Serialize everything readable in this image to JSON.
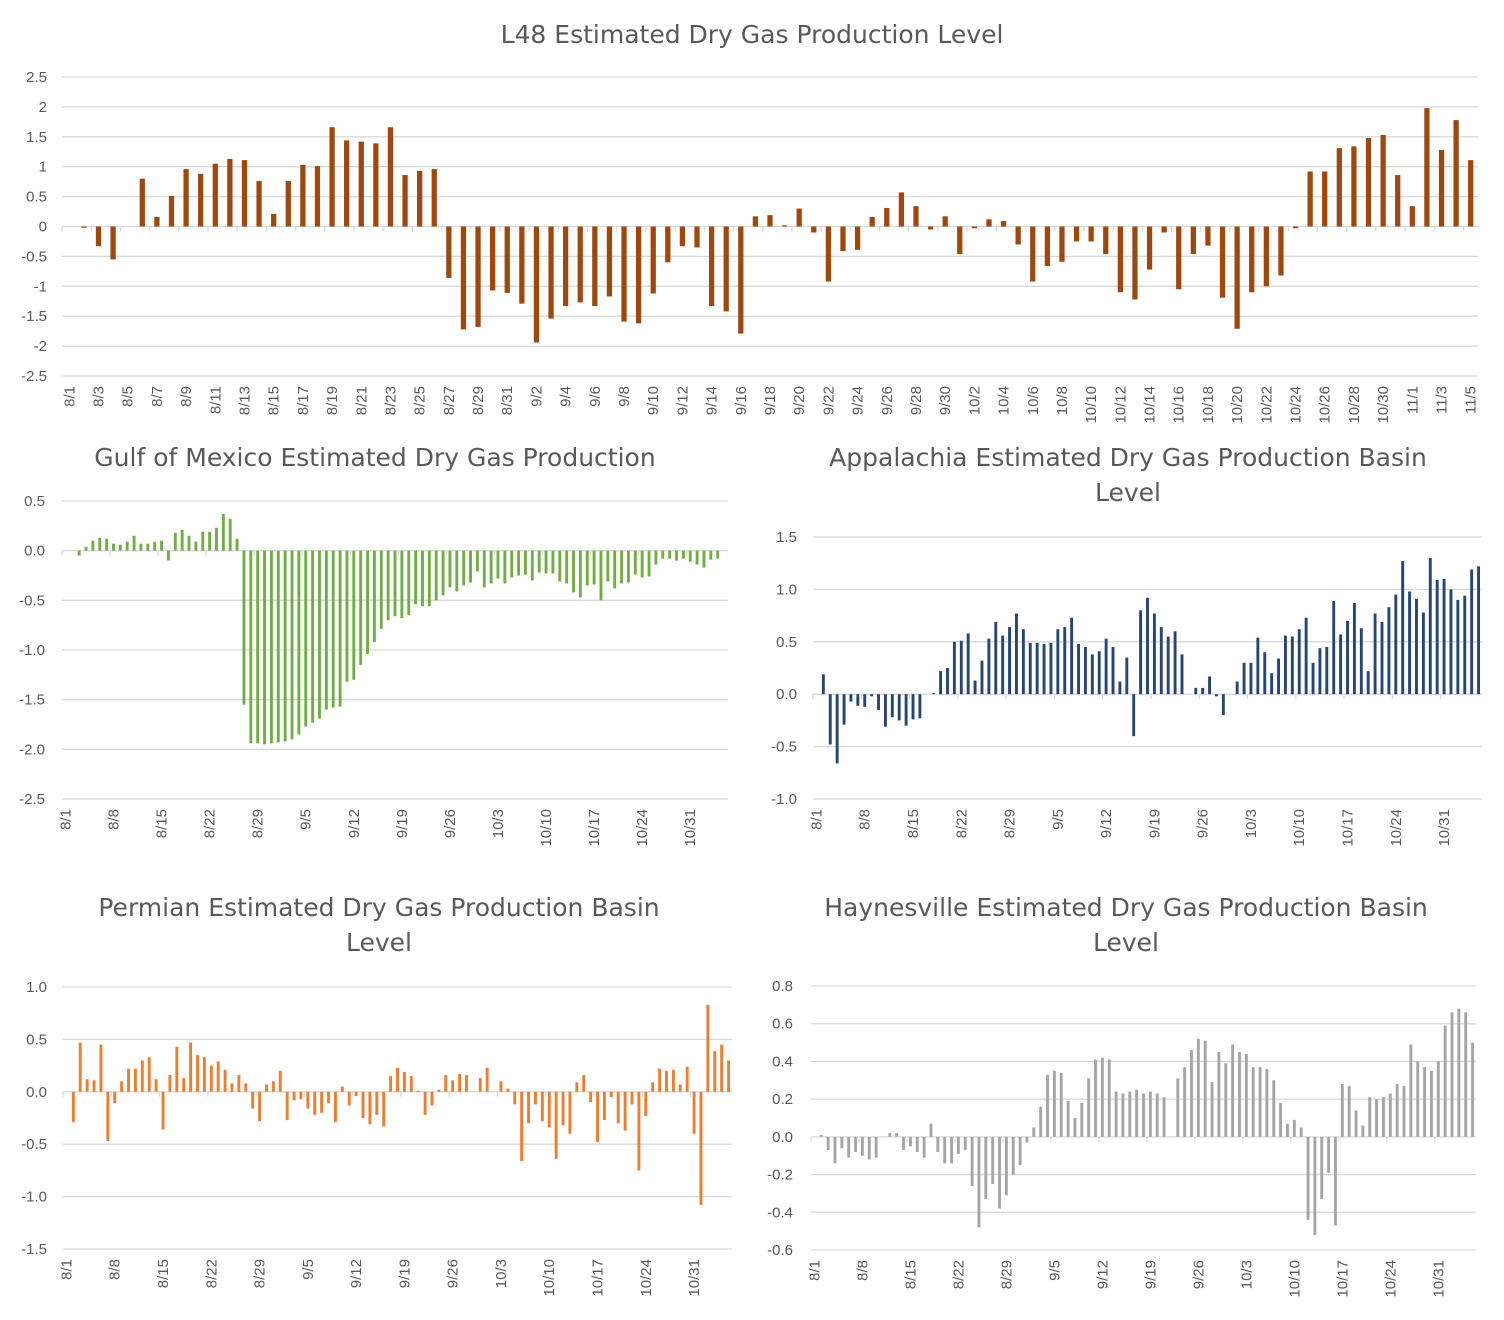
{
  "chart_data": [
    {
      "type": "bar",
      "title": "L48 Estimated Dry Gas Production Level",
      "color": "#9e480e",
      "ylim": [
        -2.5,
        2.5
      ],
      "yticks": [
        "2.5",
        "2",
        "1.5",
        "1",
        "0.5",
        "0",
        "-0.5",
        "-1",
        "-1.5",
        "-2",
        "-2.5"
      ],
      "grid": true,
      "legend": "none",
      "categories": [
        "8/1",
        "8/2",
        "8/3",
        "8/4",
        "8/5",
        "8/6",
        "8/7",
        "8/8",
        "8/9",
        "8/10",
        "8/11",
        "8/12",
        "8/13",
        "8/14",
        "8/15",
        "8/16",
        "8/17",
        "8/18",
        "8/19",
        "8/20",
        "8/21",
        "8/22",
        "8/23",
        "8/24",
        "8/25",
        "8/26",
        "8/27",
        "8/28",
        "8/29",
        "8/30",
        "8/31",
        "9/1",
        "9/2",
        "9/3",
        "9/4",
        "9/5",
        "9/6",
        "9/7",
        "9/8",
        "9/9",
        "9/10",
        "9/11",
        "9/12",
        "9/13",
        "9/14",
        "9/15",
        "9/16",
        "9/17",
        "9/18",
        "9/19",
        "9/20",
        "9/21",
        "9/22",
        "9/23",
        "9/24",
        "9/25",
        "9/26",
        "9/27",
        "9/28",
        "9/29",
        "9/30",
        "10/1",
        "10/2",
        "10/3",
        "10/4",
        "10/5",
        "10/6",
        "10/7",
        "10/8",
        "10/9",
        "10/10",
        "10/11",
        "10/12",
        "10/13",
        "10/14",
        "10/15",
        "10/16",
        "10/17",
        "10/18",
        "10/19",
        "10/20",
        "10/21",
        "10/22",
        "10/23",
        "10/24",
        "10/25",
        "10/26",
        "10/27",
        "10/28",
        "10/29",
        "10/30",
        "10/31",
        "11/1",
        "11/2",
        "11/3",
        "11/4",
        "11/5"
      ],
      "xtick_labels": [
        "8/1",
        "8/3",
        "8/5",
        "8/7",
        "8/9",
        "8/11",
        "8/13",
        "8/15",
        "8/17",
        "8/19",
        "8/21",
        "8/23",
        "8/25",
        "8/27",
        "8/29",
        "8/31",
        "9/2",
        "9/4",
        "9/6",
        "9/8",
        "9/10",
        "9/12",
        "9/14",
        "9/16",
        "9/18",
        "9/20",
        "9/22",
        "9/24",
        "9/26",
        "9/28",
        "9/30",
        "10/2",
        "10/4",
        "10/6",
        "10/8",
        "10/10",
        "10/12",
        "10/14",
        "10/16",
        "10/18",
        "10/20",
        "10/22",
        "10/24",
        "10/26",
        "10/28",
        "10/30",
        "11/1",
        "11/3",
        "11/5"
      ],
      "values": [
        0,
        -0.02,
        -0.33,
        -0.55,
        0,
        0.8,
        0.16,
        0.51,
        0.96,
        0.88,
        1.05,
        1.13,
        1.11,
        0.76,
        0.21,
        0.76,
        1.03,
        1.01,
        1.66,
        1.44,
        1.42,
        1.39,
        1.66,
        0.86,
        0.93,
        0.96,
        -0.86,
        -1.72,
        -1.68,
        -1.07,
        -1.11,
        -1.29,
        -1.94,
        -1.54,
        -1.33,
        -1.27,
        -1.33,
        -1.17,
        -1.59,
        -1.62,
        -1.12,
        -0.6,
        -0.33,
        -0.35,
        -1.33,
        -1.42,
        -1.79,
        0.17,
        0.19,
        0.02,
        0.3,
        -0.1,
        -0.92,
        -0.41,
        -0.39,
        0.16,
        0.31,
        0.57,
        0.34,
        -0.05,
        0.17,
        -0.46,
        -0.03,
        0.12,
        0.09,
        -0.3,
        -0.92,
        -0.66,
        -0.59,
        -0.25,
        -0.25,
        -0.46,
        -1.1,
        -1.22,
        -0.72,
        -0.1,
        -1.05,
        -0.46,
        -0.32,
        -1.19,
        -1.71,
        -1.1,
        -1.0,
        -0.82,
        -0.03,
        0.92,
        0.92,
        1.31,
        1.34,
        1.48,
        1.53,
        0.86,
        0.34,
        1.98,
        1.28,
        1.78,
        1.11
      ]
    },
    {
      "type": "bar",
      "title": "Gulf of Mexico Estimated Dry Gas Production",
      "color": "#70ad47",
      "ylim": [
        -2.5,
        0.5
      ],
      "yticks": [
        "0.5",
        "0.0",
        "-0.5",
        "-1.0",
        "-1.5",
        "-2.0",
        "-2.5"
      ],
      "grid": true,
      "legend": "none",
      "categories": [
        "8/1",
        "8/2",
        "8/3",
        "8/4",
        "8/5",
        "8/6",
        "8/7",
        "8/8",
        "8/9",
        "8/10",
        "8/11",
        "8/12",
        "8/13",
        "8/14",
        "8/15",
        "8/16",
        "8/17",
        "8/18",
        "8/19",
        "8/20",
        "8/21",
        "8/22",
        "8/23",
        "8/24",
        "8/25",
        "8/26",
        "8/27",
        "8/28",
        "8/29",
        "8/30",
        "8/31",
        "9/1",
        "9/2",
        "9/3",
        "9/4",
        "9/5",
        "9/6",
        "9/7",
        "9/8",
        "9/9",
        "9/10",
        "9/11",
        "9/12",
        "9/13",
        "9/14",
        "9/15",
        "9/16",
        "9/17",
        "9/18",
        "9/19",
        "9/20",
        "9/21",
        "9/22",
        "9/23",
        "9/24",
        "9/25",
        "9/26",
        "9/27",
        "9/28",
        "9/29",
        "9/30",
        "10/1",
        "10/2",
        "10/3",
        "10/4",
        "10/5",
        "10/6",
        "10/7",
        "10/8",
        "10/9",
        "10/10",
        "10/11",
        "10/12",
        "10/13",
        "10/14",
        "10/15",
        "10/16",
        "10/17",
        "10/18",
        "10/19",
        "10/20",
        "10/21",
        "10/22",
        "10/23",
        "10/24",
        "10/25",
        "10/26",
        "10/27",
        "10/28",
        "10/29",
        "10/30",
        "10/31",
        "11/1",
        "11/2",
        "11/3",
        "11/4",
        "11/5"
      ],
      "xtick_labels": [
        "8/1",
        "8/8",
        "8/15",
        "8/22",
        "8/29",
        "9/5",
        "9/12",
        "9/19",
        "9/26",
        "10/3",
        "10/10",
        "10/17",
        "10/24",
        "10/31"
      ],
      "values": [
        0,
        0,
        -0.05,
        0.04,
        0.1,
        0.13,
        0.12,
        0.07,
        0.06,
        0.09,
        0.15,
        0.07,
        0.07,
        0.09,
        0.1,
        -0.1,
        0.18,
        0.21,
        0.15,
        0.09,
        0.19,
        0.19,
        0.23,
        0.37,
        0.32,
        0.12,
        -1.55,
        -1.94,
        -1.94,
        -1.95,
        -1.94,
        -1.93,
        -1.92,
        -1.9,
        -1.85,
        -1.77,
        -1.73,
        -1.69,
        -1.6,
        -1.58,
        -1.57,
        -1.32,
        -1.3,
        -1.15,
        -1.04,
        -0.92,
        -0.79,
        -0.7,
        -0.66,
        -0.68,
        -0.65,
        -0.54,
        -0.56,
        -0.56,
        -0.5,
        -0.45,
        -0.37,
        -0.41,
        -0.35,
        -0.32,
        -0.21,
        -0.37,
        -0.33,
        -0.28,
        -0.33,
        -0.27,
        -0.25,
        -0.24,
        -0.3,
        -0.22,
        -0.23,
        -0.23,
        -0.31,
        -0.33,
        -0.42,
        -0.47,
        -0.35,
        -0.34,
        -0.5,
        -0.31,
        -0.38,
        -0.33,
        -0.32,
        -0.24,
        -0.27,
        -0.26,
        -0.14,
        -0.08,
        -0.08,
        -0.1,
        -0.08,
        -0.11,
        -0.14,
        -0.17,
        -0.09,
        -0.08,
        0
      ]
    },
    {
      "type": "bar",
      "title": "Appalachia Estimated Dry Gas Production Basin Level",
      "color": "#264478",
      "ylim": [
        -1.0,
        1.5
      ],
      "yticks": [
        "1.5",
        "1.0",
        "0.5",
        "0.0",
        "-0.5",
        "-1.0"
      ],
      "grid": true,
      "legend": "none",
      "categories": [
        "8/1",
        "8/2",
        "8/3",
        "8/4",
        "8/5",
        "8/6",
        "8/7",
        "8/8",
        "8/9",
        "8/10",
        "8/11",
        "8/12",
        "8/13",
        "8/14",
        "8/15",
        "8/16",
        "8/17",
        "8/18",
        "8/19",
        "8/20",
        "8/21",
        "8/22",
        "8/23",
        "8/24",
        "8/25",
        "8/26",
        "8/27",
        "8/28",
        "8/29",
        "8/30",
        "8/31",
        "9/1",
        "9/2",
        "9/3",
        "9/4",
        "9/5",
        "9/6",
        "9/7",
        "9/8",
        "9/9",
        "9/10",
        "9/11",
        "9/12",
        "9/13",
        "9/14",
        "9/15",
        "9/16",
        "9/17",
        "9/18",
        "9/19",
        "9/20",
        "9/21",
        "9/22",
        "9/23",
        "9/24",
        "9/25",
        "9/26",
        "9/27",
        "9/28",
        "9/29",
        "9/30",
        "10/1",
        "10/2",
        "10/3",
        "10/4",
        "10/5",
        "10/6",
        "10/7",
        "10/8",
        "10/9",
        "10/10",
        "10/11",
        "10/12",
        "10/13",
        "10/14",
        "10/15",
        "10/16",
        "10/17",
        "10/18",
        "10/19",
        "10/20",
        "10/21",
        "10/22",
        "10/23",
        "10/24",
        "10/25",
        "10/26",
        "10/27",
        "10/28",
        "10/29",
        "10/30",
        "10/31",
        "11/1",
        "11/2",
        "11/3",
        "11/4",
        "11/5"
      ],
      "xtick_labels": [
        "8/1",
        "8/8",
        "8/15",
        "8/22",
        "8/29",
        "9/5",
        "9/12",
        "9/19",
        "9/26",
        "10/3",
        "10/10",
        "10/17",
        "10/24",
        "10/31"
      ],
      "values": [
        0,
        0.19,
        -0.48,
        -0.66,
        -0.29,
        -0.07,
        -0.11,
        -0.12,
        -0.02,
        -0.15,
        -0.31,
        -0.22,
        -0.25,
        -0.3,
        -0.24,
        -0.23,
        0,
        0.01,
        0.22,
        0.25,
        0.5,
        0.51,
        0.58,
        0.13,
        0.32,
        0.53,
        0.69,
        0.56,
        0.64,
        0.77,
        0.62,
        0.49,
        0.49,
        0.48,
        0.49,
        0.62,
        0.64,
        0.73,
        0.48,
        0.45,
        0.38,
        0.41,
        0.53,
        0.45,
        0.12,
        0.35,
        -0.4,
        0.8,
        0.92,
        0.77,
        0.64,
        0.55,
        0.6,
        0.38,
        0,
        0.06,
        0.06,
        0.17,
        -0.02,
        -0.2,
        0,
        0.12,
        0.3,
        0.3,
        0.54,
        0.4,
        0.2,
        0.34,
        0.56,
        0.55,
        0.62,
        0.73,
        0.3,
        0.44,
        0.45,
        0.89,
        0.57,
        0.7,
        0.87,
        0.63,
        0.22,
        0.77,
        0.69,
        0.83,
        0.95,
        1.27,
        0.98,
        0.91,
        0.78,
        1.3,
        1.09,
        1.1,
        1.0,
        0.9,
        0.94,
        1.19,
        1.22
      ]
    },
    {
      "type": "bar",
      "title": "Permian Estimated Dry Gas Production Basin Level",
      "color": "#ed7d31",
      "ylim": [
        -1.5,
        1.0
      ],
      "yticks": [
        "1.0",
        "0.5",
        "0.0",
        "-0.5",
        "-1.0",
        "-1.5"
      ],
      "grid": true,
      "legend": "none",
      "categories": [
        "8/1",
        "8/2",
        "8/3",
        "8/4",
        "8/5",
        "8/6",
        "8/7",
        "8/8",
        "8/9",
        "8/10",
        "8/11",
        "8/12",
        "8/13",
        "8/14",
        "8/15",
        "8/16",
        "8/17",
        "8/18",
        "8/19",
        "8/20",
        "8/21",
        "8/22",
        "8/23",
        "8/24",
        "8/25",
        "8/26",
        "8/27",
        "8/28",
        "8/29",
        "8/30",
        "8/31",
        "9/1",
        "9/2",
        "9/3",
        "9/4",
        "9/5",
        "9/6",
        "9/7",
        "9/8",
        "9/9",
        "9/10",
        "9/11",
        "9/12",
        "9/13",
        "9/14",
        "9/15",
        "9/16",
        "9/17",
        "9/18",
        "9/19",
        "9/20",
        "9/21",
        "9/22",
        "9/23",
        "9/24",
        "9/25",
        "9/26",
        "9/27",
        "9/28",
        "9/29",
        "9/30",
        "10/1",
        "10/2",
        "10/3",
        "10/4",
        "10/5",
        "10/6",
        "10/7",
        "10/8",
        "10/9",
        "10/10",
        "10/11",
        "10/12",
        "10/13",
        "10/14",
        "10/15",
        "10/16",
        "10/17",
        "10/18",
        "10/19",
        "10/20",
        "10/21",
        "10/22",
        "10/23",
        "10/24",
        "10/25",
        "10/26",
        "10/27",
        "10/28",
        "10/29",
        "10/30",
        "10/31",
        "11/1",
        "11/2",
        "11/3",
        "11/4",
        "11/5"
      ],
      "xtick_labels": [
        "8/1",
        "8/8",
        "8/15",
        "8/22",
        "8/29",
        "9/5",
        "9/12",
        "9/19",
        "9/26",
        "10/3",
        "10/10",
        "10/17",
        "10/24",
        "10/31"
      ],
      "values": [
        0,
        -0.29,
        0.47,
        0.12,
        0.11,
        0.45,
        -0.47,
        -0.11,
        0.1,
        0.22,
        0.22,
        0.3,
        0.33,
        0.12,
        -0.36,
        0.16,
        0.43,
        0.13,
        0.47,
        0.35,
        0.33,
        0.25,
        0.29,
        0.21,
        0.08,
        0.16,
        0.08,
        -0.16,
        -0.28,
        0.07,
        0.1,
        0.2,
        -0.27,
        -0.08,
        -0.07,
        -0.16,
        -0.22,
        -0.2,
        -0.11,
        -0.29,
        0.05,
        -0.13,
        -0.04,
        -0.25,
        -0.31,
        -0.22,
        -0.33,
        0.15,
        0.23,
        0.19,
        0.15,
        0.01,
        -0.22,
        -0.13,
        0.02,
        0.16,
        0.11,
        0.17,
        0.16,
        0,
        0.13,
        0.23,
        0,
        0.1,
        0.03,
        -0.12,
        -0.66,
        -0.3,
        -0.12,
        -0.28,
        -0.34,
        -0.64,
        -0.32,
        -0.4,
        0.09,
        0.16,
        -0.1,
        -0.48,
        -0.27,
        -0.05,
        -0.3,
        -0.37,
        -0.12,
        -0.75,
        -0.23,
        0.09,
        0.22,
        0.2,
        0.21,
        0.07,
        0.24,
        -0.4,
        -1.08,
        0.83,
        0.39,
        0.45,
        0.3
      ]
    },
    {
      "type": "bar",
      "title": "Haynesville Estimated Dry Gas Production Basin Level",
      "color": "#a5a5a5",
      "ylim": [
        -0.6,
        0.8
      ],
      "yticks": [
        "0.8",
        "0.6",
        "0.4",
        "0.2",
        "0.0",
        "-0.2",
        "-0.4",
        "-0.6"
      ],
      "grid": true,
      "legend": "none",
      "categories": [
        "8/1",
        "8/2",
        "8/3",
        "8/4",
        "8/5",
        "8/6",
        "8/7",
        "8/8",
        "8/9",
        "8/10",
        "8/11",
        "8/12",
        "8/13",
        "8/14",
        "8/15",
        "8/16",
        "8/17",
        "8/18",
        "8/19",
        "8/20",
        "8/21",
        "8/22",
        "8/23",
        "8/24",
        "8/25",
        "8/26",
        "8/27",
        "8/28",
        "8/29",
        "8/30",
        "8/31",
        "9/1",
        "9/2",
        "9/3",
        "9/4",
        "9/5",
        "9/6",
        "9/7",
        "9/8",
        "9/9",
        "9/10",
        "9/11",
        "9/12",
        "9/13",
        "9/14",
        "9/15",
        "9/16",
        "9/17",
        "9/18",
        "9/19",
        "9/20",
        "9/21",
        "9/22",
        "9/23",
        "9/24",
        "9/25",
        "9/26",
        "9/27",
        "9/28",
        "9/29",
        "9/30",
        "10/1",
        "10/2",
        "10/3",
        "10/4",
        "10/5",
        "10/6",
        "10/7",
        "10/8",
        "10/9",
        "10/10",
        "10/11",
        "10/12",
        "10/13",
        "10/14",
        "10/15",
        "10/16",
        "10/17",
        "10/18",
        "10/19",
        "10/20",
        "10/21",
        "10/22",
        "10/23",
        "10/24",
        "10/25",
        "10/26",
        "10/27",
        "10/28",
        "10/29",
        "10/30",
        "10/31",
        "11/1",
        "11/2",
        "11/3",
        "11/4",
        "11/5"
      ],
      "xtick_labels": [
        "8/1",
        "8/8",
        "8/15",
        "8/22",
        "8/29",
        "9/5",
        "9/12",
        "9/19",
        "9/26",
        "10/3",
        "10/10",
        "10/17",
        "10/24",
        "10/31"
      ],
      "values": [
        0,
        0.01,
        -0.07,
        -0.14,
        -0.06,
        -0.11,
        -0.08,
        -0.1,
        -0.12,
        -0.11,
        0,
        0.02,
        0.02,
        -0.07,
        -0.05,
        -0.08,
        -0.11,
        0.07,
        -0.08,
        -0.14,
        -0.14,
        -0.09,
        -0.07,
        -0.26,
        -0.48,
        -0.33,
        -0.25,
        -0.38,
        -0.31,
        -0.2,
        -0.15,
        -0.03,
        0.05,
        0.16,
        0.33,
        0.35,
        0.34,
        0.19,
        0.1,
        0.18,
        0.31,
        0.41,
        0.42,
        0.41,
        0.24,
        0.23,
        0.24,
        0.25,
        0.23,
        0.24,
        0.23,
        0.21,
        0,
        0.31,
        0.37,
        0.46,
        0.52,
        0.51,
        0.29,
        0.45,
        0.39,
        0.49,
        0.45,
        0.44,
        0.37,
        0.37,
        0.36,
        0.3,
        0.18,
        0.07,
        0.09,
        0.05,
        -0.44,
        -0.52,
        -0.33,
        -0.19,
        -0.47,
        0.28,
        0.27,
        0.14,
        0.06,
        0.21,
        0.2,
        0.21,
        0.23,
        0.28,
        0.27,
        0.49,
        0.4,
        0.37,
        0.35,
        0.4,
        0.59,
        0.66,
        0.68,
        0.66,
        0.5
      ]
    }
  ]
}
